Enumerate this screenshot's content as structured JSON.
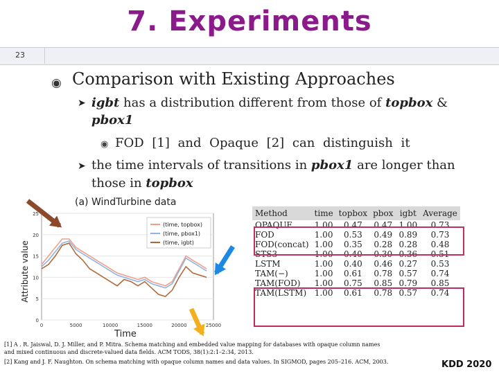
{
  "header": {
    "title": "7.  Experiments",
    "slide_number": "23"
  },
  "section": {
    "bullet_icon": "circled-bullet-icon",
    "heading": "Comparison with Existing Approaches"
  },
  "points": {
    "p1": {
      "a": "igbt",
      "b": " has a distribution different from those of ",
      "c": "topbox",
      "d": " &",
      "e": "pbox1"
    },
    "p1_sub": "FOD  [1]  and  Opaque  [2]  can  distinguish  it",
    "p2": {
      "a": "the time intervals of transitions in ",
      "b": "pbox1",
      "c": " are longer than",
      "d": "those in ",
      "e": "topbox"
    }
  },
  "chart_data": {
    "type": "line",
    "title": "(a) WindTurbine data",
    "xlabel": "Time",
    "ylabel": "Attribute value",
    "xlim": [
      0,
      25000
    ],
    "ylim": [
      0,
      25
    ],
    "x_ticks": [
      "0",
      "5000",
      "10000",
      "15000",
      "20000",
      "25000"
    ],
    "y_ticks": [
      "0",
      "5",
      "10",
      "15",
      "20",
      "25"
    ],
    "legend": [
      "(time, topbox)",
      "(time, pbox1)",
      "(time, igbt)"
    ],
    "legend_position": "top-right",
    "series": [
      {
        "name": "(time, topbox)",
        "color": "#f0a08a",
        "x": [
          0,
          1000,
          2000,
          3000,
          4000,
          5000,
          6000,
          7000,
          8000,
          9000,
          10000,
          11000,
          12000,
          13000,
          14000,
          15000,
          16000,
          17000,
          18000,
          19000,
          20000,
          21000,
          22000,
          23000,
          24000
        ],
        "values": [
          13,
          15,
          17,
          19,
          19,
          17,
          16,
          15,
          14,
          13,
          12,
          11,
          10.5,
          10,
          9.5,
          10,
          9,
          8.5,
          8,
          9,
          12,
          15,
          14,
          13,
          12
        ]
      },
      {
        "name": "(time, pbox1)",
        "color": "#8fb4e0",
        "x": [
          0,
          1000,
          2000,
          3000,
          4000,
          5000,
          6000,
          7000,
          8000,
          9000,
          10000,
          11000,
          12000,
          13000,
          14000,
          15000,
          16000,
          17000,
          18000,
          19000,
          20000,
          21000,
          22000,
          23000,
          24000
        ],
        "values": [
          12.5,
          14,
          16,
          18,
          18.5,
          16.5,
          15.5,
          14.5,
          13.5,
          12.5,
          11.5,
          10.5,
          10,
          9.5,
          9,
          9.5,
          8.5,
          8,
          7.5,
          8.5,
          11.5,
          14.5,
          13.5,
          12.5,
          11.5
        ]
      },
      {
        "name": "(time, igbt)",
        "color": "#b06a3a",
        "x": [
          0,
          1000,
          2000,
          3000,
          4000,
          5000,
          6000,
          7000,
          8000,
          9000,
          10000,
          11000,
          12000,
          13000,
          14000,
          15000,
          16000,
          17000,
          18000,
          19000,
          20000,
          21000,
          22000,
          23000,
          24000
        ],
        "values": [
          12,
          13,
          15,
          17.5,
          18,
          15.5,
          14,
          12,
          11,
          10,
          9,
          8,
          9.5,
          9,
          8,
          9,
          7.5,
          6,
          5.5,
          7,
          10,
          12.5,
          11,
          10.5,
          10
        ]
      }
    ]
  },
  "comparison_table": {
    "columns": [
      "Method",
      "time",
      "topbox",
      "pbox",
      "igbt",
      "Average"
    ],
    "rows": [
      [
        "OPAQUE",
        "1.00",
        "0.47",
        "0.47",
        "1.00",
        "0.73"
      ],
      [
        "FOD",
        "1.00",
        "0.53",
        "0.49",
        "0.89",
        "0.73"
      ],
      [
        "FOD(concat)",
        "1.00",
        "0.35",
        "0.28",
        "0.28",
        "0.48"
      ],
      [
        "STS3",
        "1.00",
        "0.40",
        "0.30",
        "0.36",
        "0.51"
      ],
      [
        "LSTM",
        "1.00",
        "0.40",
        "0.46",
        "0.27",
        "0.53"
      ],
      [
        "TAM(−)",
        "1.00",
        "0.61",
        "0.78",
        "0.57",
        "0.74"
      ],
      [
        "TAM(FOD)",
        "1.00",
        "0.75",
        "0.85",
        "0.79",
        "0.85"
      ],
      [
        "TAM(LSTM)",
        "1.00",
        "0.61",
        "0.78",
        "0.57",
        "0.74"
      ]
    ]
  },
  "references": {
    "r1a": "[1]  A . R. Jaiswal, D. J. Miller, and P. Mitra. Schema matching and embedded value mapping for databases with opaque column names",
    "r1b": "and mixed continuous and discrete-valued data fields. ACM TODS, 38(1):2:1–2:34, 2013.",
    "r2": "[2]  Kang and J. F. Naughton. On schema matching with opaque column names and data values. In SIGMOD, pages 205–216. ACM, 2003."
  },
  "footer": {
    "venue": "KDD 2020"
  },
  "colors": {
    "title": "#8b1a8b",
    "highlight": "#c0305a",
    "arrow_brown": "#8b4a2b",
    "arrow_blue": "#1e88e5",
    "arrow_yellow": "#f2b01e"
  }
}
